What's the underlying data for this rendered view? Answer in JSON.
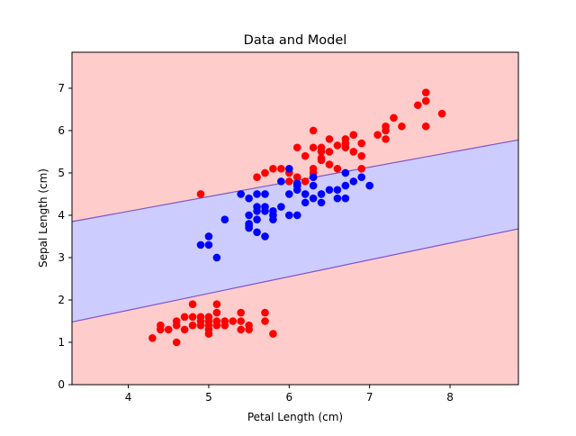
{
  "chart_data": {
    "type": "scatter",
    "title": "Data and Model",
    "xlabel": "Petal Length (cm)",
    "ylabel": "Sepal Length (cm)",
    "xlim": [
      3.3,
      8.85
    ],
    "ylim": [
      0,
      7.85
    ],
    "xticks": [
      "4",
      "5",
      "6",
      "7",
      "8"
    ],
    "yticks": [
      "0",
      "1",
      "2",
      "3",
      "4",
      "5",
      "6",
      "7"
    ],
    "grid": false,
    "colors": {
      "outer_region": "#ffcccc",
      "inner_region": "#ccccff",
      "boundary": "#7b55c8",
      "class_a": "#ff0000",
      "class_b": "#0000ff"
    },
    "decision_boundary": {
      "upper": [
        [
          3.3,
          3.85
        ],
        [
          8.85,
          5.78
        ]
      ],
      "lower": [
        [
          3.3,
          1.48
        ],
        [
          8.85,
          3.68
        ]
      ]
    },
    "series": [
      {
        "color": "#ff0000",
        "points": [
          [
            4.3,
            1.1
          ],
          [
            4.4,
            1.4
          ],
          [
            4.4,
            1.3
          ],
          [
            4.5,
            1.3
          ],
          [
            4.6,
            1.0
          ],
          [
            4.6,
            1.4
          ],
          [
            4.6,
            1.5
          ],
          [
            4.7,
            1.3
          ],
          [
            4.7,
            1.6
          ],
          [
            4.8,
            1.6
          ],
          [
            4.8,
            1.4
          ],
          [
            4.8,
            1.9
          ],
          [
            4.9,
            1.4
          ],
          [
            4.9,
            1.5
          ],
          [
            4.9,
            1.6
          ],
          [
            5.0,
            1.2
          ],
          [
            5.0,
            1.3
          ],
          [
            5.0,
            1.4
          ],
          [
            5.0,
            1.5
          ],
          [
            5.0,
            1.6
          ],
          [
            5.1,
            1.4
          ],
          [
            5.1,
            1.5
          ],
          [
            5.1,
            1.7
          ],
          [
            5.1,
            1.9
          ],
          [
            5.2,
            1.5
          ],
          [
            5.2,
            1.4
          ],
          [
            5.3,
            1.5
          ],
          [
            5.4,
            1.3
          ],
          [
            5.4,
            1.5
          ],
          [
            5.4,
            1.7
          ],
          [
            5.5,
            1.3
          ],
          [
            5.5,
            1.4
          ],
          [
            5.7,
            1.5
          ],
          [
            5.7,
            1.7
          ],
          [
            5.8,
            1.2
          ],
          [
            4.9,
            4.5
          ],
          [
            5.6,
            4.9
          ],
          [
            5.7,
            5.0
          ],
          [
            5.8,
            5.1
          ],
          [
            5.9,
            5.1
          ],
          [
            6.0,
            4.8
          ],
          [
            6.0,
            5.0
          ],
          [
            6.1,
            4.9
          ],
          [
            6.1,
            5.6
          ],
          [
            6.2,
            4.8
          ],
          [
            6.3,
            4.9
          ],
          [
            6.3,
            5.0
          ],
          [
            6.3,
            5.1
          ],
          [
            6.3,
            5.6
          ],
          [
            6.3,
            6.0
          ],
          [
            6.4,
            5.3
          ],
          [
            6.4,
            5.5
          ],
          [
            6.4,
            5.6
          ],
          [
            6.5,
            5.2
          ],
          [
            6.5,
            5.5
          ],
          [
            6.5,
            5.8
          ],
          [
            6.7,
            5.6
          ],
          [
            6.7,
            5.7
          ],
          [
            6.7,
            5.8
          ],
          [
            6.8,
            5.5
          ],
          [
            6.8,
            5.9
          ],
          [
            6.9,
            5.1
          ],
          [
            6.9,
            5.4
          ],
          [
            6.9,
            5.7
          ],
          [
            7.1,
            5.9
          ],
          [
            7.2,
            5.8
          ],
          [
            7.2,
            6.0
          ],
          [
            7.2,
            6.1
          ],
          [
            7.3,
            6.3
          ],
          [
            7.4,
            6.1
          ],
          [
            7.6,
            6.6
          ],
          [
            7.7,
            6.1
          ],
          [
            7.7,
            6.7
          ],
          [
            7.7,
            6.9
          ],
          [
            7.9,
            6.4
          ],
          [
            6.2,
            5.4
          ],
          [
            6.4,
            5.35
          ],
          [
            6.6,
            5.1
          ],
          [
            6.6,
            5.65
          ]
        ]
      },
      {
        "color": "#0000ff",
        "points": [
          [
            4.9,
            3.3
          ],
          [
            5.0,
            3.3
          ],
          [
            5.0,
            3.5
          ],
          [
            5.1,
            3.0
          ],
          [
            5.2,
            3.9
          ],
          [
            5.4,
            4.5
          ],
          [
            5.5,
            3.7
          ],
          [
            5.5,
            3.8
          ],
          [
            5.5,
            4.0
          ],
          [
            5.5,
            4.4
          ],
          [
            5.6,
            3.6
          ],
          [
            5.6,
            3.9
          ],
          [
            5.6,
            4.1
          ],
          [
            5.6,
            4.2
          ],
          [
            5.6,
            4.5
          ],
          [
            5.7,
            3.5
          ],
          [
            5.7,
            4.1
          ],
          [
            5.7,
            4.2
          ],
          [
            5.7,
            4.5
          ],
          [
            5.8,
            3.9
          ],
          [
            5.8,
            4.0
          ],
          [
            5.8,
            4.1
          ],
          [
            5.9,
            4.2
          ],
          [
            5.9,
            4.8
          ],
          [
            6.0,
            4.0
          ],
          [
            6.0,
            4.5
          ],
          [
            6.0,
            5.1
          ],
          [
            6.1,
            4.0
          ],
          [
            6.1,
            4.6
          ],
          [
            6.1,
            4.7
          ],
          [
            6.2,
            4.3
          ],
          [
            6.2,
            4.5
          ],
          [
            6.3,
            4.4
          ],
          [
            6.3,
            4.7
          ],
          [
            6.3,
            4.9
          ],
          [
            6.4,
            4.3
          ],
          [
            6.4,
            4.5
          ],
          [
            6.5,
            4.6
          ],
          [
            6.6,
            4.4
          ],
          [
            6.6,
            4.6
          ],
          [
            6.7,
            4.4
          ],
          [
            6.7,
            4.7
          ],
          [
            6.7,
            5.0
          ],
          [
            6.8,
            4.8
          ],
          [
            6.9,
            4.9
          ],
          [
            7.0,
            4.7
          ],
          [
            6.1,
            4.75
          ],
          [
            5.5,
            3.75
          ]
        ]
      }
    ]
  }
}
